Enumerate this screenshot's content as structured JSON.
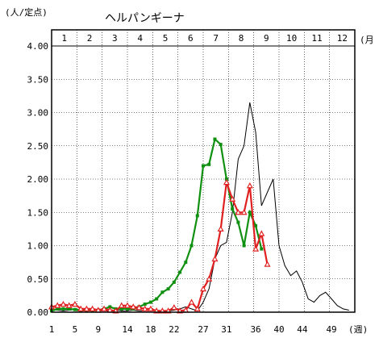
{
  "chart_data": {
    "type": "line",
    "title": "ヘルパンギーナ",
    "ylabel": "(人/定点)",
    "xlabel": "(週)",
    "month_label_unit": "(月",
    "months": [
      "1",
      "2",
      "3",
      "4",
      "5",
      "6",
      "7",
      "8",
      "9",
      "10",
      "11",
      "12"
    ],
    "ylim": [
      0,
      4
    ],
    "xlim": [
      1,
      53
    ],
    "yticks": [
      "0.00",
      "0.50",
      "1.00",
      "1.50",
      "2.00",
      "2.50",
      "3.00",
      "3.50",
      "4.00"
    ],
    "xticks": [
      1,
      5,
      9,
      14,
      18,
      22,
      27,
      31,
      36,
      40,
      44,
      49
    ],
    "grid": true,
    "colors": {
      "black": "#000000",
      "green": "#109010",
      "red": "#e02020"
    },
    "series": [
      {
        "color": "black",
        "marker": "none",
        "x": [
          1,
          2,
          3,
          4,
          5,
          6,
          7,
          8,
          9,
          10,
          11,
          12,
          13,
          14,
          15,
          16,
          17,
          18,
          19,
          20,
          21,
          22,
          23,
          24,
          25,
          26,
          27,
          28,
          29,
          30,
          31,
          32,
          33,
          34,
          35,
          36,
          37,
          38,
          39,
          40,
          41,
          42,
          43,
          44,
          45,
          46,
          47,
          48,
          49,
          50,
          51,
          52
        ],
        "y": [
          0.05,
          0.03,
          0.02,
          0.03,
          0.04,
          0.03,
          0.02,
          0.02,
          0.03,
          0.02,
          0.02,
          0.03,
          0.02,
          0.02,
          0.03,
          0.02,
          0.02,
          0.02,
          0.03,
          0.02,
          0.02,
          0.03,
          0.05,
          0.08,
          0.05,
          0.02,
          0.15,
          0.35,
          0.8,
          1.0,
          1.05,
          1.5,
          2.3,
          2.5,
          3.15,
          2.7,
          1.6,
          1.8,
          2.0,
          1.0,
          0.7,
          0.55,
          0.62,
          0.45,
          0.2,
          0.15,
          0.25,
          0.3,
          0.2,
          0.1,
          0.05,
          0.03
        ]
      },
      {
        "color": "green",
        "marker": "square",
        "x": [
          1,
          2,
          3,
          4,
          5,
          6,
          7,
          8,
          9,
          10,
          11,
          12,
          13,
          14,
          15,
          16,
          17,
          18,
          19,
          20,
          21,
          22,
          23,
          24,
          25,
          26,
          27,
          28,
          29,
          30,
          31,
          32,
          33,
          34,
          35,
          36,
          37
        ],
        "y": [
          0.02,
          0.05,
          0.05,
          0.05,
          0.04,
          0.03,
          0.03,
          0.03,
          0.03,
          0.05,
          0.08,
          0.05,
          0.05,
          0.05,
          0.05,
          0.08,
          0.12,
          0.15,
          0.2,
          0.3,
          0.35,
          0.45,
          0.6,
          0.75,
          1.0,
          1.45,
          2.2,
          2.22,
          2.6,
          2.52,
          2.0,
          1.55,
          1.35,
          1.0,
          1.5,
          1.3,
          0.95
        ]
      },
      {
        "color": "red",
        "marker": "triangle",
        "x": [
          1,
          2,
          3,
          4,
          5,
          6,
          7,
          8,
          9,
          10,
          11,
          12,
          13,
          14,
          15,
          16,
          17,
          18,
          19,
          20,
          21,
          22,
          23,
          24,
          25,
          26,
          27,
          28,
          29,
          30,
          31,
          32,
          33,
          34,
          35,
          36,
          37,
          38
        ],
        "y": [
          0.08,
          0.1,
          0.12,
          0.1,
          0.12,
          0.05,
          0.05,
          0.05,
          0.03,
          0.05,
          0.03,
          0.02,
          0.1,
          0.1,
          0.08,
          0.07,
          0.05,
          0.05,
          0.02,
          0.02,
          0.02,
          0.07,
          0.02,
          0.03,
          0.15,
          0.05,
          0.35,
          0.5,
          0.8,
          1.25,
          1.95,
          1.7,
          1.5,
          1.5,
          1.9,
          0.95,
          1.18,
          0.72
        ]
      }
    ]
  }
}
